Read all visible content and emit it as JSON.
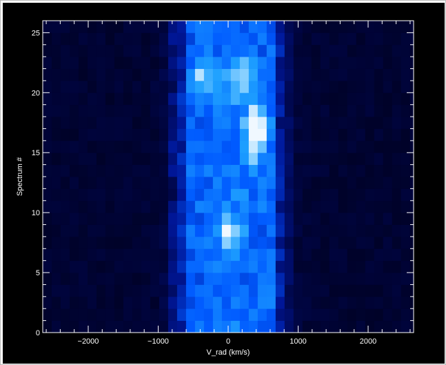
{
  "chart_data": {
    "type": "heatmap",
    "title": "",
    "xlabel": "V_rad (km/s)",
    "ylabel": "Spectrum #",
    "xlim": [
      -2650,
      2650
    ],
    "ylim": [
      0,
      26
    ],
    "x_ticks": [
      -2000,
      -1000,
      0,
      1000,
      2000
    ],
    "y_ticks": [
      0,
      5,
      10,
      15,
      20,
      25
    ],
    "x_tick_labels": [
      "−2000",
      "−1000",
      "0",
      "1000",
      "2000"
    ],
    "y_tick_labels": [
      "0",
      "5",
      "10",
      "15",
      "20",
      "25"
    ],
    "grid": false,
    "colorscale": "black-blue-white",
    "bin_width_kms": 128,
    "line_center_kms": 0,
    "core_halfwidth_kms": 650,
    "peak": {
      "x": 400,
      "y": 16.5
    },
    "secondary_peaks": [
      {
        "x": -350,
        "y": 21.5
      },
      {
        "x": 200,
        "y": 21.0
      },
      {
        "x": 0,
        "y": 8.5
      }
    ],
    "colors": {
      "background": "#000000",
      "axes": "#ffffff",
      "frame": "#b8b8b8",
      "cell_low": "#000012",
      "cell_mid": "#0050ff",
      "cell_high": "#eef6ff"
    }
  }
}
